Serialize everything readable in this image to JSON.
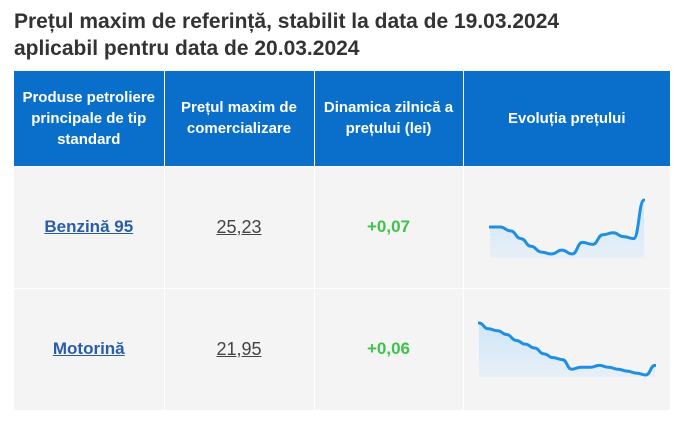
{
  "title_line1": "Prețul maxim de referință, stabilit la data de 19.03.2024",
  "title_line2": "aplicabil pentru data de 20.03.2024",
  "headers": [
    "Produse petroliere principale de tip standard",
    "Prețul maxim de comercializare",
    "Dinamica zilnică a prețului (lei)",
    "Evoluția prețului"
  ],
  "colors": {
    "header_bg": "#0a6fca",
    "link": "#2a5da8",
    "positive_change": "#3ec24a",
    "sparkline_line": "#1e8fe3",
    "sparkline_fill": "#cfe6fa"
  },
  "rows": [
    {
      "product": "Benzină 95",
      "price": "25,23",
      "change": "+0,07",
      "trend": [
        24.2,
        24.2,
        24.1,
        23.9,
        23.7,
        23.55,
        23.5,
        23.6,
        23.5,
        23.8,
        23.75,
        24.0,
        24.05,
        23.95,
        23.9,
        24.9
      ]
    },
    {
      "product": "Motorină",
      "price": "21,95",
      "change": "+0,06",
      "trend": [
        23.4,
        23.25,
        23.2,
        23.1,
        22.95,
        22.85,
        22.75,
        22.6,
        22.5,
        22.45,
        22.2,
        22.25,
        22.25,
        22.3,
        22.25,
        22.2,
        22.15,
        22.1,
        22.05,
        22.3
      ]
    }
  ]
}
